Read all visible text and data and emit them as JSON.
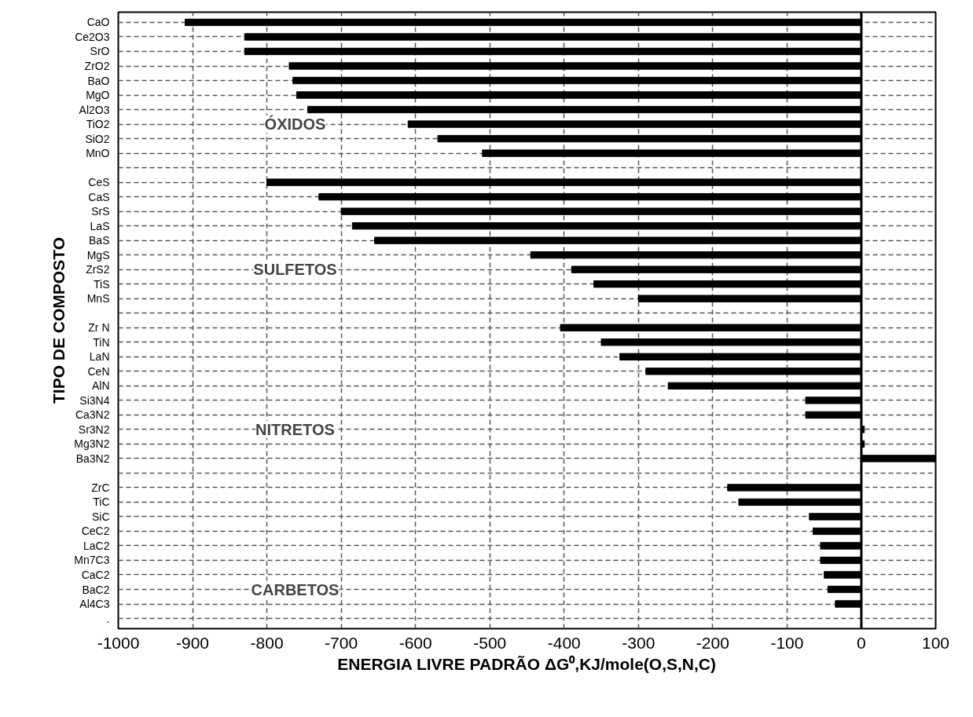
{
  "chart_data": {
    "type": "bar",
    "orientation": "horizontal",
    "xlabel": "ENERGIA LIVRE PADRÃO ΔG⁰,KJ/mole(O,S,N,C)",
    "ylabel": "TIPO DE COMPOSTO",
    "categories": [
      "CaO",
      "Ce2O3",
      "SrO",
      "ZrO2",
      "BaO",
      "MgO",
      "Al2O3",
      "TiO2",
      "SiO2",
      "MnO",
      null,
      "CeS",
      "CaS",
      "SrS",
      "LaS",
      "BaS",
      "MgS",
      "ZrS2",
      "TiS",
      "MnS",
      null,
      "Zr N",
      "TiN",
      "LaN",
      "CeN",
      "AlN",
      "Si3N4",
      "Ca3N2",
      "Sr3N2",
      "Mg3N2",
      "Ba3N2",
      null,
      "ZrC",
      "TiC",
      "SiC",
      "CeC2",
      "LaC2",
      "Mn7C3",
      "CaC2",
      "BaC2",
      "Al4C3",
      "."
    ],
    "values": [
      -910,
      -830,
      -830,
      -770,
      -765,
      -760,
      -745,
      -610,
      -570,
      -510,
      null,
      -800,
      -730,
      -700,
      -685,
      -655,
      -445,
      -390,
      -360,
      -300,
      null,
      -405,
      -350,
      -325,
      -290,
      -260,
      -75,
      -75,
      4,
      4,
      100,
      null,
      -180,
      -165,
      -70,
      -65,
      -55,
      -55,
      -50,
      -45,
      -35,
      null
    ],
    "color": "#000000",
    "xlim": [
      -1000,
      100
    ],
    "xticks": [
      -1000,
      -900,
      -800,
      -700,
      -600,
      -500,
      -400,
      -300,
      -200,
      -100,
      0,
      100
    ],
    "grid": true,
    "ref_lines": [
      {
        "axis": "x",
        "value": 0,
        "color": "#000000"
      }
    ],
    "annotations": [
      "ÓXIDOS",
      "SULFETOS",
      "NITRETOS",
      "CARBETOS"
    ]
  }
}
